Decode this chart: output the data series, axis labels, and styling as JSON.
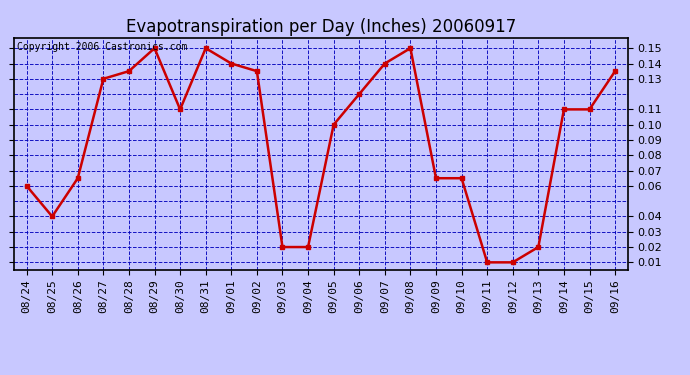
{
  "title": "Evapotranspiration per Day (Inches) 20060917",
  "copyright": "Copyright 2006 Castronics.com",
  "dates": [
    "08/24",
    "08/25",
    "08/26",
    "08/27",
    "08/28",
    "08/29",
    "08/30",
    "08/31",
    "09/01",
    "09/02",
    "09/03",
    "09/04",
    "09/05",
    "09/06",
    "09/07",
    "09/08",
    "09/09",
    "09/10",
    "09/11",
    "09/12",
    "09/13",
    "09/14",
    "09/15",
    "09/16"
  ],
  "values": [
    0.06,
    0.04,
    0.065,
    0.13,
    0.135,
    0.15,
    0.11,
    0.15,
    0.14,
    0.135,
    0.02,
    0.02,
    0.1,
    0.12,
    0.14,
    0.15,
    0.065,
    0.065,
    0.01,
    0.01,
    0.02,
    0.11,
    0.11,
    0.135
  ],
  "yticks": [
    0.01,
    0.02,
    0.03,
    0.04,
    0.06,
    0.07,
    0.08,
    0.09,
    0.1,
    0.11,
    0.13,
    0.14,
    0.15
  ],
  "ygrid_ticks": [
    0.01,
    0.02,
    0.03,
    0.04,
    0.05,
    0.06,
    0.07,
    0.08,
    0.09,
    0.1,
    0.11,
    0.12,
    0.13,
    0.14,
    0.15
  ],
  "line_color": "#cc0000",
  "marker_color": "#cc0000",
  "bg_color": "#c8c8ff",
  "plot_bg_color": "#c8c8ff",
  "grid_color": "#0000bb",
  "title_fontsize": 12,
  "tick_fontsize": 8,
  "copyright_fontsize": 7,
  "ymin": 0.005,
  "ymax": 0.157
}
